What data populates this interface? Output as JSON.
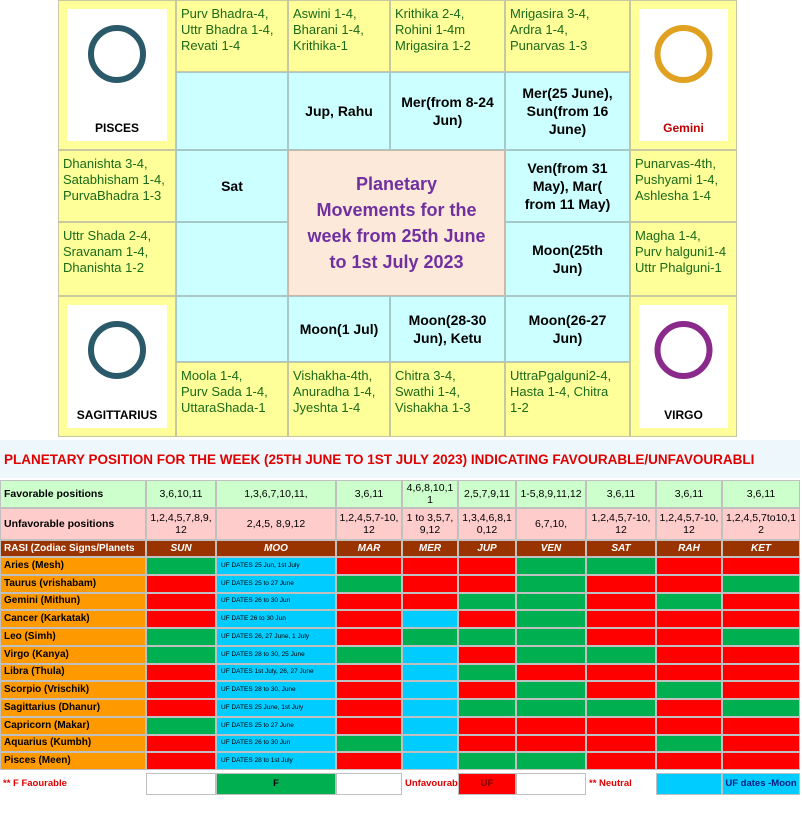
{
  "rasi_chart": {
    "signs": [
      "PISCES",
      "Gemini",
      "SAGITTARIUS",
      "VIRGO"
    ],
    "nakshatras": [
      [
        "Purv Bhadra-4,",
        "Uttr Bhadra 1-4,",
        "Revati 1-4"
      ],
      [
        "Aswini 1-4,",
        "Bharani 1-4,",
        "Krithika-1"
      ],
      [
        "Krithika 2-4,",
        "Rohini 1-4m",
        "Mrigasira 1-2"
      ],
      [
        "Mrigasira 3-4,",
        "Ardra 1-4,",
        "Punarvas 1-3"
      ],
      [
        "Dhanishta 3-4,",
        "Satabhisham 1-4,",
        "PurvaBhadra 1-3"
      ],
      [
        "Punarvas-4th,",
        "Pushyami 1-4,",
        "Ashlesha 1-4"
      ],
      [
        "Uttr Shada 2-4,",
        "Sravanam 1-4,",
        "Dhanishta 1-2"
      ],
      [
        "Magha 1-4,",
        "Purv halguni1-4",
        "Uttr Phalguni-1"
      ],
      [
        "Moola 1-4,",
        "Purv Sada 1-4,",
        "UttaraShada-1"
      ],
      [
        "Vishakha-4th,",
        "Anuradha 1-4,",
        "Jyeshta 1-4"
      ],
      [
        "Chitra 3-4,",
        "Swathi 1-4,",
        "Vishakha 1-3"
      ],
      [
        "UttraPgalguni2-4,",
        "Hasta 1-4, Chitra",
        "1-2"
      ]
    ],
    "planets": [
      [
        "Jup, Rahu"
      ],
      [
        "Mer(from 8-24",
        "Jun)"
      ],
      [
        "Mer(25 June),",
        "Sun(from 16",
        "June)"
      ],
      [
        "Sat"
      ],
      [
        "Ven(from 31",
        "May), Mar(",
        "from 11 May)"
      ],
      [
        "Moon(25th",
        "Jun)"
      ],
      [
        "Moon(1 Jul)"
      ],
      [
        "Moon(28-30",
        "Jun), Ketu"
      ],
      [
        "Moon(26-27",
        "Jun)"
      ]
    ],
    "title": [
      "Planetary",
      "Movements for the",
      "week from 25th June",
      "to 1st July 2023"
    ]
  },
  "position_table": {
    "title": "PLANETARY POSITION FOR THE WEEK (25TH  JUNE TO 1ST JULY 2023) INDICATING FAVOURABLE/UNFAVOURABLI",
    "favorable": {
      "label": "Favorable positions",
      "values": [
        "3,6,10,11",
        "1,3,6,7,10,11,",
        "3,6,11",
        "4,6,8,10,11",
        "2,5,7,9,11",
        "1-5,8,9,11,12",
        "3,6,11",
        "3,6,11",
        "3,6,11"
      ]
    },
    "unfavorable": {
      "label": "Unfavorable positions",
      "values": [
        "1,2,4,5,7,8,9,12",
        "2,4,5, 8,9,12",
        "1,2,4,5,7-10,12",
        "1 to 3,5,7,9,12",
        "1,3,4,6,8,10,12",
        "6,7,10,",
        "1,2,4,5,7-10,12",
        "1,2,4,5,7-10,12",
        "1,2,4,5,7to10,12"
      ]
    },
    "header": [
      "RASI (Zodiac Signs/Planets",
      "SUN",
      "MOO",
      "MAR",
      "MER",
      "JUP",
      "VEN",
      "SAT",
      "RAH",
      "KET"
    ],
    "rows": [
      {
        "sign": "Aries (Mesh)",
        "moon_uf": "UF DATES 25 Jun, 1st July",
        "colors": [
          "#00b050",
          "#00ccff",
          "#ff0000",
          "#ff0000",
          "#ff0000",
          "#00b050",
          "#00b050",
          "#ff0000",
          "#ff0000"
        ]
      },
      {
        "sign": "Taurus (vrishabam)",
        "moon_uf": "UF DATES 25 to 27 June",
        "colors": [
          "#ff0000",
          "#00ccff",
          "#00b050",
          "#ff0000",
          "#ff0000",
          "#00b050",
          "#ff0000",
          "#ff0000",
          "#00b050"
        ]
      },
      {
        "sign": "Gemini (Mithun)",
        "moon_uf": "UF DATES 26 to 30 Jun",
        "colors": [
          "#ff0000",
          "#00ccff",
          "#ff0000",
          "#ff0000",
          "#00b050",
          "#00b050",
          "#ff0000",
          "#00b050",
          "#ff0000"
        ]
      },
      {
        "sign": "Cancer (Karkatak)",
        "moon_uf": "UF DATE 26 to 30 Jun",
        "colors": [
          "#ff0000",
          "#00ccff",
          "#ff0000",
          "#00ccff",
          "#ff0000",
          "#00b050",
          "#ff0000",
          "#ff0000",
          "#ff0000"
        ]
      },
      {
        "sign": "Leo (Simh)",
        "moon_uf": "UF DATES 26, 27 June, 1 July",
        "colors": [
          "#00b050",
          "#00ccff",
          "#ff0000",
          "#00b050",
          "#00b050",
          "#00b050",
          "#ff0000",
          "#ff0000",
          "#00b050"
        ]
      },
      {
        "sign": "Virgo (Kanya)",
        "moon_uf": "UF DATES 28 to 30, 25 June",
        "colors": [
          "#00b050",
          "#00ccff",
          "#00b050",
          "#00ccff",
          "#ff0000",
          "#00b050",
          "#00b050",
          "#ff0000",
          "#ff0000"
        ]
      },
      {
        "sign": "Libra (Thula)",
        "moon_uf": "UF DATES 1st July, 26, 27 June",
        "colors": [
          "#ff0000",
          "#00ccff",
          "#ff0000",
          "#00ccff",
          "#00b050",
          "#ff0000",
          "#ff0000",
          "#ff0000",
          "#ff0000"
        ]
      },
      {
        "sign": "Scorpio (Vrischik)",
        "moon_uf": "UF DATES 28 to 30, June",
        "colors": [
          "#ff0000",
          "#00ccff",
          "#ff0000",
          "#00ccff",
          "#ff0000",
          "#00b050",
          "#ff0000",
          "#00b050",
          "#ff0000"
        ]
      },
      {
        "sign": "Sagittarius (Dhanur)",
        "moon_uf": "UF DATES 25 June, 1st July",
        "colors": [
          "#ff0000",
          "#00ccff",
          "#ff0000",
          "#00ccff",
          "#00b050",
          "#00b050",
          "#00b050",
          "#ff0000",
          "#00b050"
        ]
      },
      {
        "sign": "Capricorn (Makar)",
        "moon_uf": "UF DATES 25 to 27 June",
        "colors": [
          "#00b050",
          "#00ccff",
          "#ff0000",
          "#00ccff",
          "#ff0000",
          "#ff0000",
          "#ff0000",
          "#ff0000",
          "#ff0000"
        ]
      },
      {
        "sign": "Aquarius (Kumbh)",
        "moon_uf": "UF DATES 26 to 30 Jun",
        "colors": [
          "#ff0000",
          "#00ccff",
          "#00b050",
          "#00ccff",
          "#ff0000",
          "#ff0000",
          "#ff0000",
          "#00b050",
          "#ff0000"
        ]
      },
      {
        "sign": "Pisces (Meen)",
        "moon_uf": "UF DATES 28 to 1st July",
        "colors": [
          "#ff0000",
          "#00ccff",
          "#ff0000",
          "#00ccff",
          "#00b050",
          "#00b050",
          "#ff0000",
          "#ff0000",
          "#ff0000"
        ]
      }
    ],
    "legend": [
      "**  F    Faourable",
      "F",
      "Unfavourab",
      "UF",
      "** Neutral",
      "UF dates -Moon"
    ]
  }
}
